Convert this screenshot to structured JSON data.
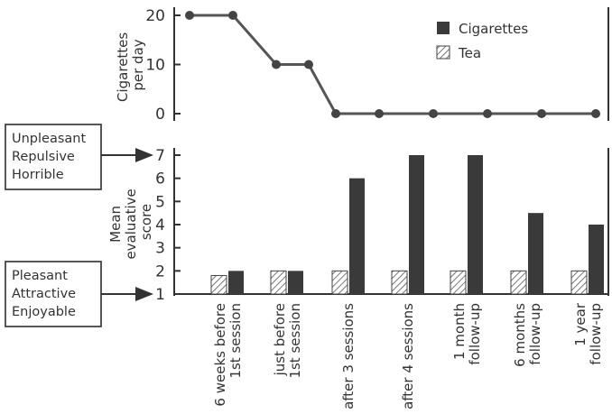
{
  "chart_data": [
    {
      "type": "line",
      "ylabel_lines": [
        "Cigarettes",
        "per day"
      ],
      "ylim": [
        0,
        20
      ],
      "yticks": [
        0,
        10,
        20
      ],
      "series": [
        {
          "name": "Cigarettes",
          "values": [
            20,
            20,
            10,
            10,
            0,
            0,
            0,
            0,
            0,
            0
          ]
        }
      ],
      "x_positions": [
        1,
        1.8,
        2.6,
        3.2,
        3.7,
        4.5,
        5.5,
        6.5,
        7.5,
        8.5
      ],
      "grid": false
    },
    {
      "type": "bar",
      "ylabel_lines": [
        "Mean",
        "evaluative",
        "score"
      ],
      "ylim": [
        1,
        7
      ],
      "yticks": [
        1,
        2,
        3,
        4,
        5,
        6,
        7
      ],
      "categories": [
        [
          "6 weeks before",
          "1st session"
        ],
        [
          "just before",
          "1st session"
        ],
        [
          "after 3 sessions"
        ],
        [
          "after 4 sessions"
        ],
        [
          "1 month",
          "follow-up"
        ],
        [
          "6 months",
          "follow-up"
        ],
        [
          "1 year",
          "follow-up"
        ]
      ],
      "series": [
        {
          "name": "Tea",
          "values": [
            1.8,
            2.0,
            2.0,
            2.0,
            2.0,
            2.0,
            2.0
          ],
          "pattern": "hatched"
        },
        {
          "name": "Cigarettes",
          "values": [
            2.0,
            2.0,
            6.0,
            7.0,
            7.0,
            4.5,
            4.0
          ],
          "color": "#3a3a3a"
        }
      ],
      "grid": false
    }
  ],
  "legend": {
    "placement": "top-right",
    "items": [
      {
        "name": "Cigarettes",
        "style": "solid"
      },
      {
        "name": "Tea",
        "style": "hatched"
      }
    ]
  },
  "annotations": {
    "top_box": [
      "Unpleasant",
      "Repulsive",
      "Horrible"
    ],
    "bottom_box": [
      "Pleasant",
      "Attractive",
      "Enjoyable"
    ]
  }
}
